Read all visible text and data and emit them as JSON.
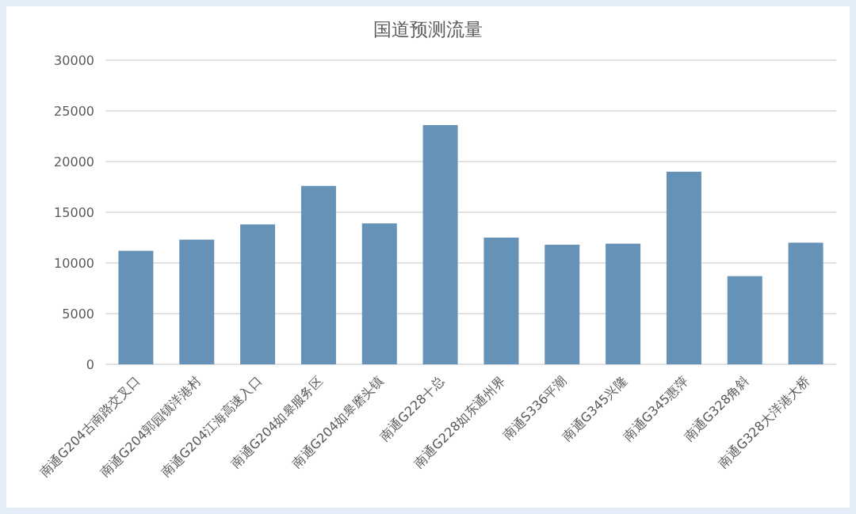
{
  "chart_data": {
    "type": "bar",
    "title": "国道预测流量",
    "categories": [
      "南通G204古南路交叉口",
      "南通G204郭园镇洋港村",
      "南通G204江海高速入口",
      "南通G204如皋服务区",
      "南通G204如皋磨头镇",
      "南通G228十总",
      "南通G228如东通州界",
      "南通S336平潮",
      "南通G345兴隆",
      "南通G345惠萍",
      "南通G328角斜",
      "南通G328大洋港大桥"
    ],
    "values": [
      11200,
      12300,
      13800,
      17600,
      13900,
      23600,
      12500,
      11800,
      11900,
      19000,
      8700,
      12000
    ],
    "color": "#6792b8",
    "ylim": [
      0,
      30000
    ],
    "yticks": [
      0,
      5000,
      10000,
      15000,
      20000,
      25000,
      30000
    ],
    "grid": "y"
  }
}
